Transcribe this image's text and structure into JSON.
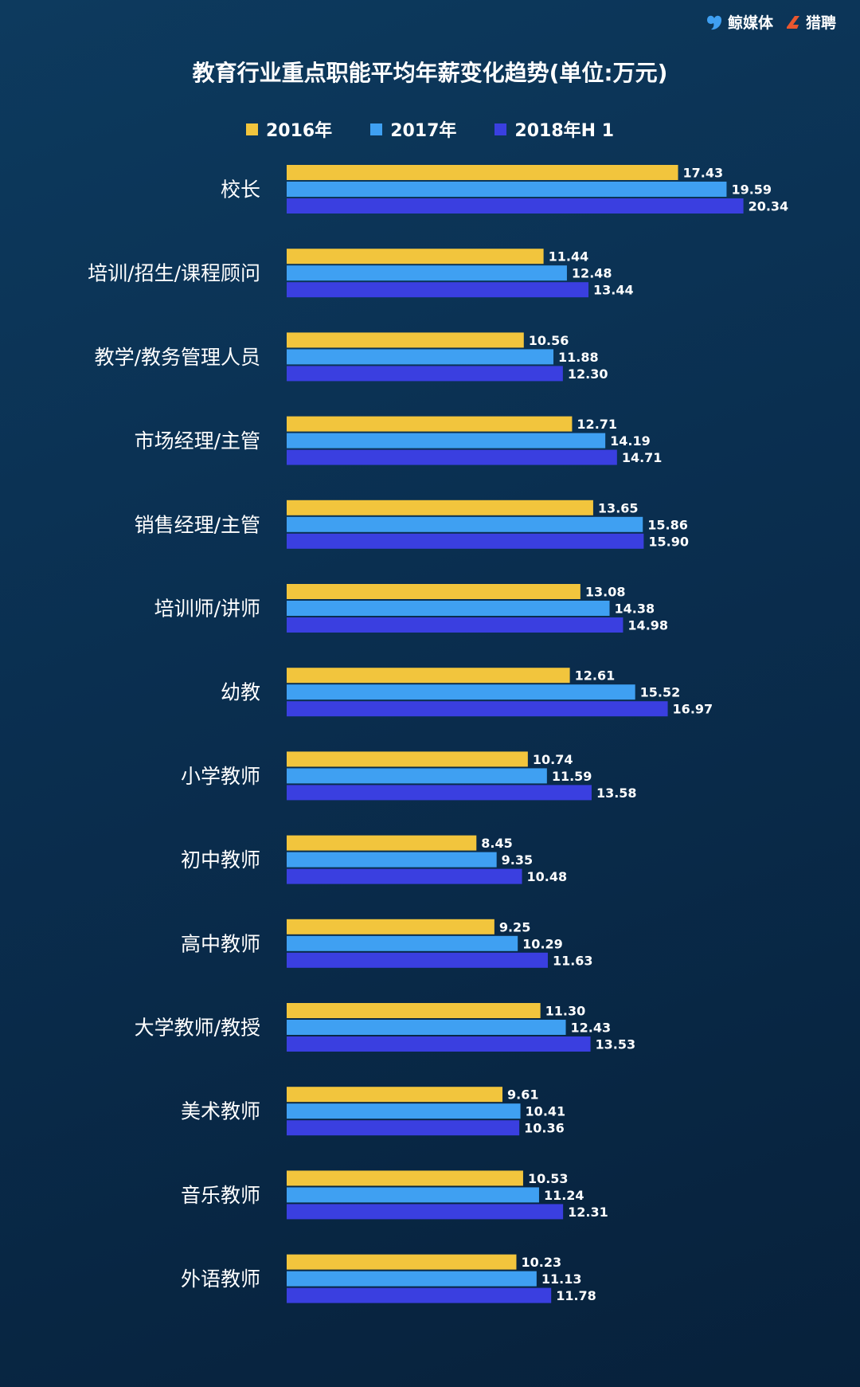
{
  "logos": {
    "brand1": "鲸媒体",
    "brand2": "猎聘"
  },
  "chart_data": {
    "type": "bar",
    "orientation": "horizontal",
    "title": "教育行业重点职能平均年薪变化趋势(单位:万元)",
    "categories": [
      "校长",
      "培训/招生/课程顾问",
      "教学/教务管理人员",
      "市场经理/主管",
      "销售经理/主管",
      "培训师/讲师",
      "幼教",
      "小学教师",
      "初中教师",
      "高中教师",
      "大学教师/教授",
      "美术教师",
      "音乐教师",
      "外语教师"
    ],
    "series": [
      {
        "name": "2016年",
        "color": "#f2c53d",
        "values": [
          17.43,
          11.44,
          10.56,
          12.71,
          13.65,
          13.08,
          12.61,
          10.74,
          8.45,
          9.25,
          11.3,
          9.61,
          10.53,
          10.23
        ]
      },
      {
        "name": "2017年",
        "color": "#3fa0f2",
        "values": [
          19.59,
          12.48,
          11.88,
          14.19,
          15.86,
          14.38,
          15.52,
          11.59,
          9.35,
          10.29,
          12.43,
          10.41,
          11.24,
          11.13
        ]
      },
      {
        "name": "2018年H 1",
        "color": "#3a3fe0",
        "values": [
          20.34,
          13.44,
          12.3,
          14.71,
          15.9,
          14.98,
          16.97,
          13.58,
          10.48,
          11.63,
          13.53,
          10.36,
          12.31,
          11.78
        ]
      }
    ],
    "value_labels": [
      [
        "17.43",
        "11.44",
        "10.56",
        "12.71",
        "13.65",
        "13.08",
        "12.61",
        "10.74",
        "8.45",
        "9.25",
        "11.30",
        "9.61",
        "10.53",
        "10.23"
      ],
      [
        "19.59",
        "12.48",
        "11.88",
        "14.19",
        "15.86",
        "14.38",
        "15.52",
        "11.59",
        "9.35",
        "10.29",
        "12.43",
        "10.41",
        "11.24",
        "11.13"
      ],
      [
        "20.34",
        "13.44",
        "12.30",
        "14.71",
        "15.90",
        "14.98",
        "16.97",
        "13.58",
        "10.48",
        "11.63",
        "13.53",
        "10.36",
        "12.31",
        "11.78"
      ]
    ],
    "legend_position": "top-center",
    "grid": false,
    "xlim": [
      0,
      22
    ]
  }
}
